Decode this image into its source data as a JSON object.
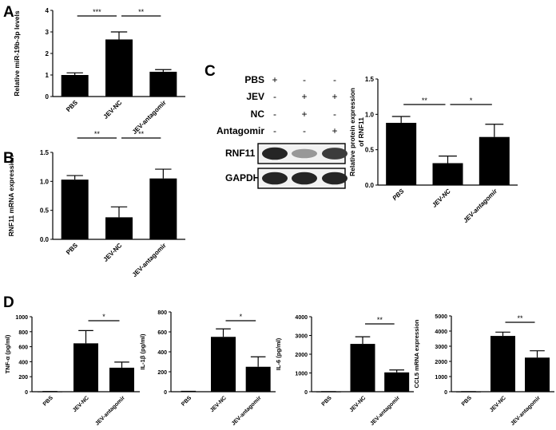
{
  "panels": {
    "A": "A",
    "B": "B",
    "C": "C",
    "D": "D"
  },
  "western_blot": {
    "row_labels": [
      "PBS",
      "JEV",
      "NC",
      "Antagomir"
    ],
    "lanes": [
      [
        "+",
        "-",
        "-"
      ],
      [
        "-",
        "+",
        "+"
      ],
      [
        "-",
        "+",
        "-"
      ],
      [
        "-",
        "-",
        "+"
      ]
    ],
    "bands": [
      "RNF11",
      "GAPDH"
    ],
    "rnf11_intensity": [
      0.95,
      0.45,
      0.85
    ],
    "gapdh_intensity": [
      0.95,
      0.95,
      0.95
    ]
  },
  "chart_data": [
    {
      "id": "A",
      "type": "bar",
      "categories": [
        "PBS",
        "JEV-NC",
        "JEV-antagomir"
      ],
      "values": [
        1.0,
        2.65,
        1.15
      ],
      "errors": [
        0.1,
        0.35,
        0.1
      ],
      "ylabel": "Relative miR-19b-3p levels",
      "ylim": [
        0,
        4
      ],
      "yticks": [
        "0",
        "1",
        "2",
        "3",
        "4"
      ],
      "significance": [
        {
          "from": 0,
          "to": 1,
          "label": "***"
        },
        {
          "from": 1,
          "to": 2,
          "label": "**"
        }
      ]
    },
    {
      "id": "B",
      "type": "bar",
      "categories": [
        "PBS",
        "JEV-NC",
        "JEV-antagomir"
      ],
      "values": [
        1.03,
        0.38,
        1.05
      ],
      "errors": [
        0.07,
        0.18,
        0.16
      ],
      "ylabel": "RNF11 mRNA expression",
      "ylim": [
        0,
        1.5
      ],
      "yticks": [
        "0.0",
        "0.5",
        "1.0",
        "1.5"
      ],
      "significance": [
        {
          "from": 0,
          "to": 1,
          "label": "**"
        },
        {
          "from": 1,
          "to": 2,
          "label": "**"
        }
      ]
    },
    {
      "id": "C",
      "type": "bar",
      "categories": [
        "PBS",
        "JEV-NC",
        "JEV-antagomir"
      ],
      "values": [
        0.88,
        0.31,
        0.68
      ],
      "errors": [
        0.09,
        0.1,
        0.18
      ],
      "ylabel": "Relative protein expression\nof RNF11",
      "ylim": [
        0,
        1.5
      ],
      "yticks": [
        "0.0",
        "0.5",
        "1.0",
        "1.5"
      ],
      "significance": [
        {
          "from": 0,
          "to": 1,
          "label": "**"
        },
        {
          "from": 1,
          "to": 2,
          "label": "*"
        }
      ]
    },
    {
      "id": "D1",
      "type": "bar",
      "categories": [
        "PBS",
        "JEV-NC",
        "JEV-antagomir"
      ],
      "values": [
        2,
        645,
        320
      ],
      "errors": [
        1,
        170,
        75
      ],
      "ylabel": "TNF-α (pg/ml)",
      "ylim": [
        0,
        1000
      ],
      "yticks": [
        "0",
        "200",
        "400",
        "600",
        "800",
        "1000"
      ],
      "significance": [
        {
          "from": 1,
          "to": 2,
          "label": "*"
        }
      ]
    },
    {
      "id": "D2",
      "type": "bar",
      "categories": [
        "PBS",
        "JEV-NC",
        "JEV-antagomir"
      ],
      "values": [
        3,
        550,
        250
      ],
      "errors": [
        1,
        80,
        100
      ],
      "ylabel": "IL-1β (pg/ml)",
      "ylim": [
        0,
        800
      ],
      "yticks": [
        "0",
        "200",
        "400",
        "600",
        "800"
      ],
      "significance": [
        {
          "from": 1,
          "to": 2,
          "label": "*"
        }
      ]
    },
    {
      "id": "D3",
      "type": "bar",
      "categories": [
        "PBS",
        "JEV-NC",
        "JEV-antagomir"
      ],
      "values": [
        5,
        2550,
        1030
      ],
      "errors": [
        2,
        380,
        130
      ],
      "ylabel": "IL-6 (pg/ml)",
      "ylim": [
        0,
        4000
      ],
      "yticks": [
        "0",
        "1000",
        "2000",
        "3000",
        "4000"
      ],
      "significance": [
        {
          "from": 1,
          "to": 2,
          "label": "**"
        }
      ]
    },
    {
      "id": "D4",
      "type": "bar",
      "categories": [
        "PBS",
        "JEV-NC",
        "JEV-antagomir"
      ],
      "values": [
        5,
        3680,
        2250
      ],
      "errors": [
        2,
        250,
        450
      ],
      "ylabel": "CCL5 mRNA expression",
      "ylim": [
        0,
        5000
      ],
      "yticks": [
        "0",
        "1000",
        "2000",
        "3000",
        "4000",
        "5000"
      ],
      "significance": [
        {
          "from": 1,
          "to": 2,
          "label": "**"
        }
      ]
    }
  ]
}
